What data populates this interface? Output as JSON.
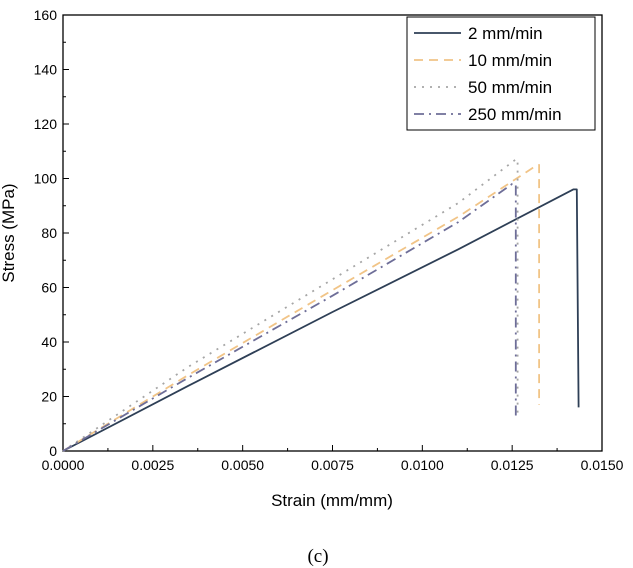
{
  "chart_data": {
    "type": "line",
    "xlabel": "Strain (mm/mm)",
    "ylabel": "Stress (MPa)",
    "xlim": [
      0,
      0.015
    ],
    "ylim": [
      0,
      160
    ],
    "x_ticks": [
      "0.0000",
      "0.0025",
      "0.0050",
      "0.0075",
      "0.0100",
      "0.0125",
      "0.0150"
    ],
    "y_ticks": [
      "0",
      "20",
      "40",
      "60",
      "80",
      "100",
      "120",
      "140",
      "160"
    ],
    "grid": false,
    "legend_position": "top-right",
    "series": [
      {
        "name": "2 mm/min",
        "color": "#2e3f56",
        "style": "solid",
        "points": [
          [
            0,
            0
          ],
          [
            0.0035,
            24
          ],
          [
            0.0075,
            51
          ],
          [
            0.011,
            74
          ],
          [
            0.0142,
            96
          ],
          [
            0.0143,
            96
          ],
          [
            0.01435,
            16
          ]
        ]
      },
      {
        "name": "10 mm/min",
        "color": "#f1c487",
        "style": "dashed",
        "points": [
          [
            0,
            0
          ],
          [
            0.0035,
            28
          ],
          [
            0.0075,
            59
          ],
          [
            0.011,
            86
          ],
          [
            0.0132,
            105
          ],
          [
            0.01325,
            105
          ],
          [
            0.01325,
            17
          ]
        ]
      },
      {
        "name": "50 mm/min",
        "color": "#a6a6a6",
        "style": "dotted",
        "points": [
          [
            0,
            0
          ],
          [
            0.0035,
            31
          ],
          [
            0.0075,
            63
          ],
          [
            0.011,
            91
          ],
          [
            0.0126,
            107
          ],
          [
            0.01265,
            107
          ],
          [
            0.01265,
            12
          ]
        ]
      },
      {
        "name": "250 mm/min",
        "color": "#6e6e98",
        "style": "dashdot",
        "points": [
          [
            0,
            0
          ],
          [
            0.0035,
            27
          ],
          [
            0.0075,
            57
          ],
          [
            0.011,
            84
          ],
          [
            0.0125,
            98
          ],
          [
            0.0126,
            98
          ],
          [
            0.0126,
            12
          ]
        ]
      }
    ]
  },
  "caption": "(c)"
}
